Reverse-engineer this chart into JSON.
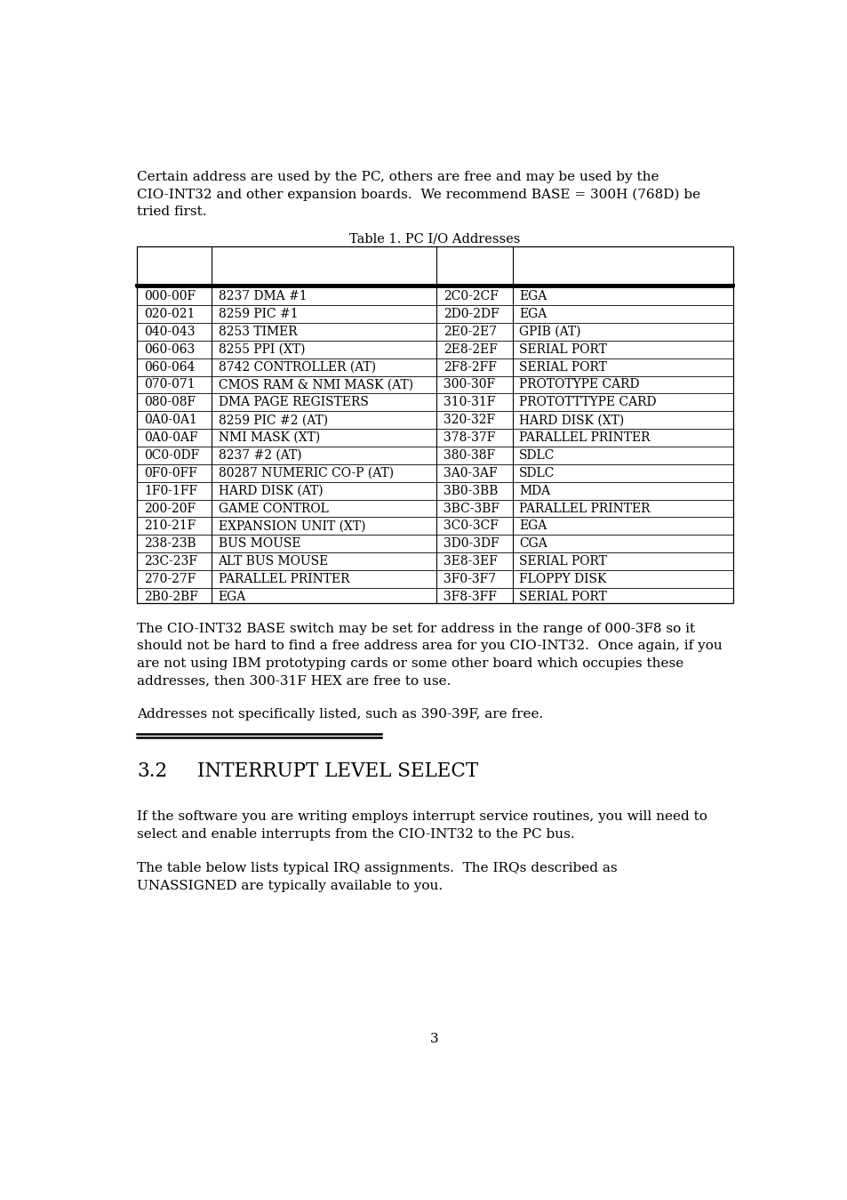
{
  "bg_color": "#ffffff",
  "text_color": "#000000",
  "intro_text": "Certain address are used by the PC, others are free and may be used by the\nCIO-INT32 and other expansion boards.  We recommend BASE = 300H (768D) be\ntried first.",
  "table_title": "Table 1. PC I/O Addresses",
  "table_left_data": [
    [
      "000-00F",
      "8237 DMA #1"
    ],
    [
      "020-021",
      "8259 PIC #1"
    ],
    [
      "040-043",
      "8253 TIMER"
    ],
    [
      "060-063",
      "8255 PPI (XT)"
    ],
    [
      "060-064",
      "8742 CONTROLLER (AT)"
    ],
    [
      "070-071",
      "CMOS RAM & NMI MASK (AT)"
    ],
    [
      "080-08F",
      "DMA PAGE REGISTERS"
    ],
    [
      "0A0-0A1",
      "8259 PIC #2 (AT)"
    ],
    [
      "0A0-0AF",
      "NMI MASK (XT)"
    ],
    [
      "0C0-0DF",
      "8237 #2 (AT)"
    ],
    [
      "0F0-0FF",
      "80287 NUMERIC CO-P (AT)"
    ],
    [
      "1F0-1FF",
      "HARD DISK (AT)"
    ],
    [
      "200-20F",
      "GAME CONTROL"
    ],
    [
      "210-21F",
      "EXPANSION UNIT (XT)"
    ],
    [
      "238-23B",
      "BUS MOUSE"
    ],
    [
      "23C-23F",
      "ALT BUS MOUSE"
    ],
    [
      "270-27F",
      "PARALLEL PRINTER"
    ],
    [
      "2B0-2BF",
      "EGA"
    ]
  ],
  "table_right_data": [
    [
      "2C0-2CF",
      "EGA"
    ],
    [
      "2D0-2DF",
      "EGA"
    ],
    [
      "2E0-2E7",
      "GPIB (AT)"
    ],
    [
      "2E8-2EF",
      "SERIAL PORT"
    ],
    [
      "2F8-2FF",
      "SERIAL PORT"
    ],
    [
      "300-30F",
      "PROTOTYPE CARD"
    ],
    [
      "310-31F",
      "PROTOTTTYPE CARD"
    ],
    [
      "320-32F",
      "HARD DISK (XT)"
    ],
    [
      "378-37F",
      "PARALLEL PRINTER"
    ],
    [
      "380-38F",
      "SDLC"
    ],
    [
      "3A0-3AF",
      "SDLC"
    ],
    [
      "3B0-3BB",
      "MDA"
    ],
    [
      "3BC-3BF",
      "PARALLEL PRINTER"
    ],
    [
      "3C0-3CF",
      "EGA"
    ],
    [
      "3D0-3DF",
      "CGA"
    ],
    [
      "3E8-3EF",
      "SERIAL PORT"
    ],
    [
      "3F0-3F7",
      "FLOPPY DISK"
    ],
    [
      "3F8-3FF",
      "SERIAL PORT"
    ]
  ],
  "para2": "The CIO-INT32 BASE switch may be set for address in the range of 000-3F8 so it\nshould not be hard to find a free address area for you CIO-INT32.  Once again, if you\nare not using IBM prototyping cards or some other board which occupies these\naddresses, then 300-31F HEX are free to use.",
  "para3": "Addresses not specifically listed, such as 390-39F, are free.",
  "section_num": "3.2",
  "section_name": "INTERRUPT LEVEL SELECT",
  "para4": "If the software you are writing employs interrupt service routines, you will need to\nselect and enable interrupts from the CIO-INT32 to the PC bus.",
  "para5": "The table below lists typical IRQ assignments.  The IRQs described as\nUNASSIGNED are typically available to you.",
  "page_number": "3",
  "font_size_body": 11.0,
  "font_size_table": 10.0,
  "font_size_title": 10.5,
  "font_size_section": 15.5,
  "font_family": "DejaVu Serif"
}
